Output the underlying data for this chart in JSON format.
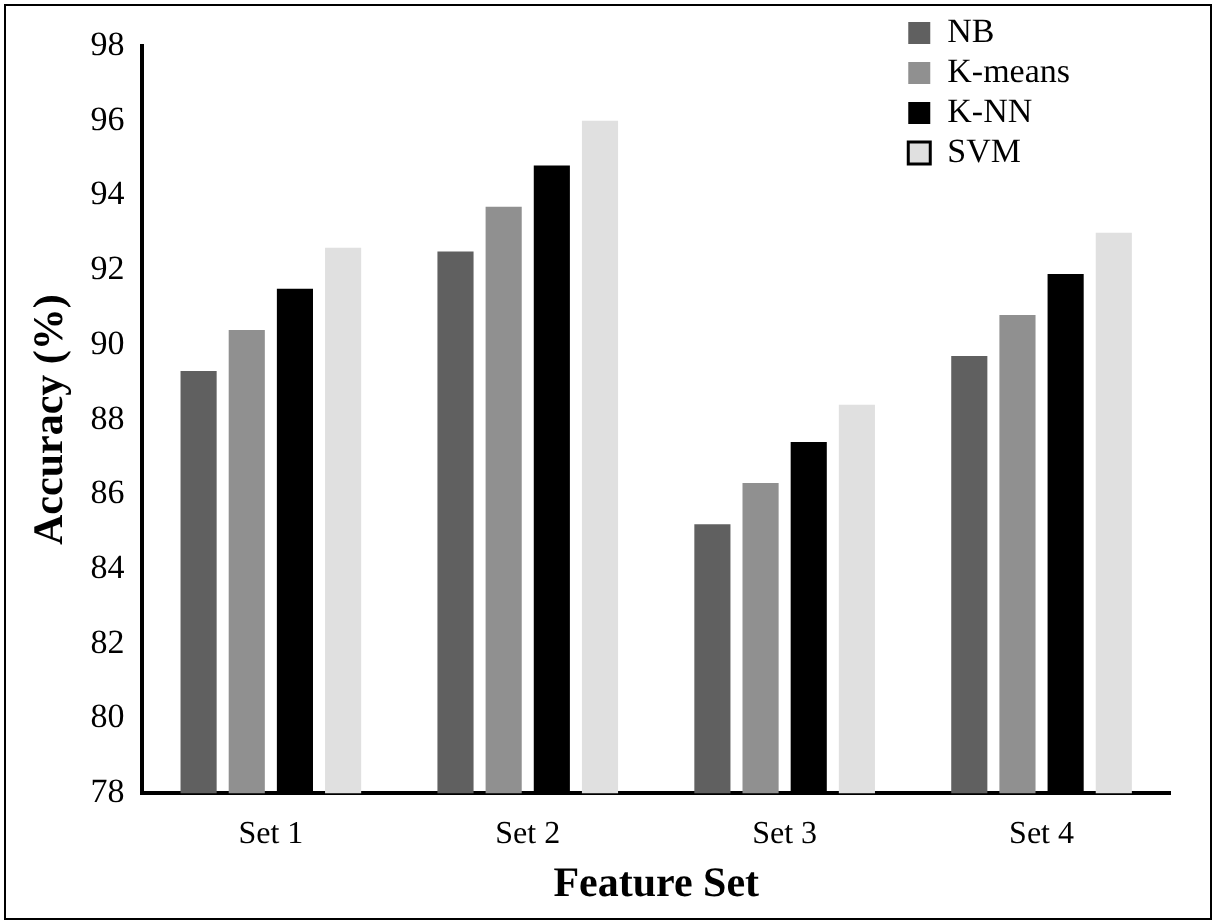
{
  "chart_data": {
    "type": "bar",
    "xlabel": "Feature Set",
    "ylabel": "Accuracy (%)",
    "categories": [
      "Set 1",
      "Set 2",
      "Set 3",
      "Set 4"
    ],
    "series": [
      {
        "name": "NB",
        "color": "#606060",
        "values": [
          89.3,
          92.5,
          85.2,
          89.7
        ]
      },
      {
        "name": "K-means",
        "color": "#909090",
        "values": [
          90.4,
          93.7,
          86.3,
          90.8
        ]
      },
      {
        "name": "K-NN",
        "color": "#000000",
        "values": [
          91.5,
          94.8,
          87.4,
          91.9
        ]
      },
      {
        "name": "SVM",
        "color": "#e0e0e0",
        "values": [
          92.6,
          96.0,
          88.4,
          93.0
        ]
      }
    ],
    "ylim": [
      78,
      98
    ],
    "yticks": [
      78,
      80,
      82,
      84,
      86,
      88,
      90,
      92,
      94,
      96,
      98
    ],
    "grid": false,
    "legend": "top right"
  }
}
